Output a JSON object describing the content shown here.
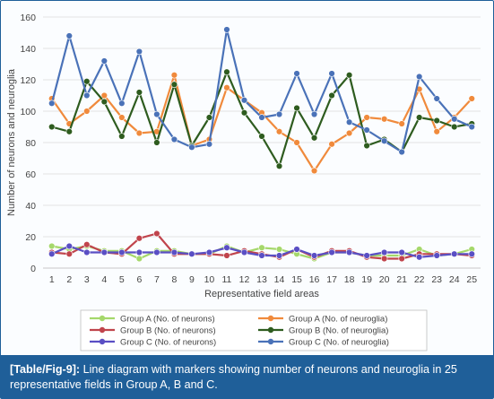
{
  "chart_data": {
    "type": "line",
    "title": "",
    "xlabel": "Representative field areas",
    "ylabel": "Number of neurons and neuroglia",
    "x": [
      1,
      2,
      3,
      4,
      5,
      6,
      7,
      8,
      9,
      10,
      11,
      12,
      13,
      14,
      15,
      16,
      17,
      18,
      19,
      20,
      21,
      22,
      23,
      24,
      25
    ],
    "ylim": [
      0,
      160
    ],
    "yticks": [
      0,
      20,
      40,
      60,
      80,
      100,
      120,
      140,
      160
    ],
    "grid": true,
    "legend_position": "bottom",
    "series": [
      {
        "name": "Group A (No. of neurons)",
        "color": "#a5d86b",
        "values": [
          14,
          12,
          14,
          11,
          11,
          6,
          11,
          11,
          9,
          9,
          14,
          10,
          13,
          12,
          9,
          6,
          10,
          10,
          8,
          8,
          8,
          12,
          8,
          9,
          12
        ]
      },
      {
        "name": "Group A (No. of neuroglia)",
        "color": "#f08a3c",
        "values": [
          108,
          92,
          100,
          110,
          96,
          86,
          87,
          123,
          78,
          82,
          115,
          107,
          99,
          87,
          80,
          62,
          79,
          86,
          96,
          95,
          92,
          114,
          87,
          96,
          108
        ]
      },
      {
        "name": "Group B (No. of neurons)",
        "color": "#c0444c",
        "values": [
          10,
          9,
          15,
          10,
          9,
          19,
          22,
          9,
          9,
          9,
          8,
          11,
          9,
          7,
          12,
          7,
          11,
          11,
          7,
          6,
          6,
          9,
          9,
          9,
          8
        ]
      },
      {
        "name": "Group B (No. of neuroglia)",
        "color": "#2e5c1f",
        "values": [
          90,
          87,
          119,
          106,
          84,
          112,
          80,
          117,
          78,
          96,
          125,
          99,
          84,
          65,
          102,
          83,
          110,
          123,
          78,
          82,
          74,
          96,
          94,
          90,
          92
        ]
      },
      {
        "name": "Group C (No. of neurons)",
        "color": "#5a4fc4",
        "values": [
          9,
          14,
          10,
          10,
          10,
          10,
          10,
          10,
          9,
          10,
          13,
          10,
          8,
          8,
          12,
          8,
          10,
          10,
          8,
          10,
          10,
          7,
          8,
          9,
          9
        ]
      },
      {
        "name": "Group C (No. of neuroglia)",
        "color": "#4a72b8",
        "values": [
          105,
          148,
          110,
          132,
          105,
          138,
          98,
          82,
          77,
          79,
          152,
          107,
          96,
          98,
          124,
          98,
          124,
          93,
          88,
          81,
          74,
          122,
          108,
          95,
          90
        ]
      }
    ]
  },
  "caption": {
    "ref": "[Table/Fig-9]:",
    "text": " Line diagram with markers showing number of neurons and neuroglia in 25 representative fields in Group A, B and C."
  }
}
